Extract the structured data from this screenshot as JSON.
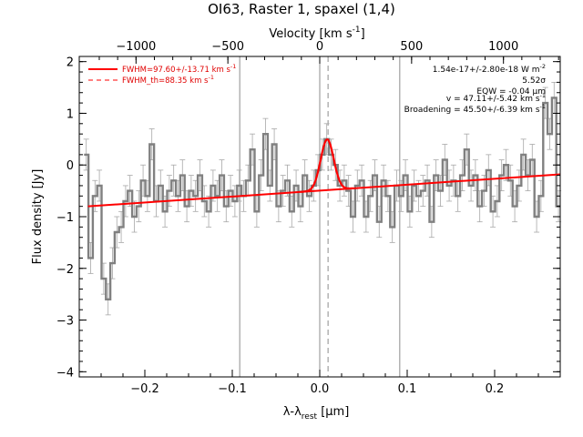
{
  "chart_data": {
    "type": "line",
    "title": "OI63, Raster 1, spaxel (1,4)",
    "xlabel": "λ-λ",
    "xlabel_sub": "rest",
    "xlabel_unit": " [μm]",
    "ylabel": "Flux density [Jy]",
    "top_xlabel": "Velocity [km s",
    "top_xlabel_sup": "-1",
    "top_xlabel_end": "]",
    "xlim": [
      -0.275,
      0.275
    ],
    "ylim": [
      -4.1,
      2.1
    ],
    "x_ticks": [
      -0.2,
      -0.1,
      0.0,
      0.1,
      0.2
    ],
    "x_tick_labels": [
      "−0.2",
      "−0.1",
      "0.0",
      "0.1",
      "0.2"
    ],
    "y_ticks": [
      -4,
      -3,
      -2,
      -1,
      0,
      1,
      2
    ],
    "y_tick_labels": [
      "−4",
      "−3",
      "−2",
      "−1",
      "0",
      "1",
      "2"
    ],
    "top_ticks_velocity": [
      -1000,
      -500,
      0,
      500,
      1000
    ],
    "top_tick_labels": [
      "−1000",
      "−500",
      "0",
      "500",
      "1000"
    ],
    "velocity_per_micron": 4760,
    "vertical_lines": [
      -0.0915,
      0.0,
      0.0915
    ],
    "line_center_dashed": 0.0095,
    "annotations": [
      "1.54e-17+/-2.80e-18 W m",
      "5.52σ",
      "EQW = -0.04 μm",
      "v = 47.11+/-5.42 km s",
      "Broadening = 45.50+/-6.39 km s"
    ],
    "annotation_sups": [
      "-2",
      "",
      "",
      "-1",
      "-1"
    ],
    "legend": [
      {
        "label": "FWHM=97.60+/-13.71 km s",
        "sup": "-1",
        "style": "solid"
      },
      {
        "label": "FWHM_th=88.35 km s",
        "sup": "-1",
        "style": "dashed"
      }
    ],
    "colors": {
      "data": "#808080",
      "fit": "#ff0000",
      "errorbar": "#a0a0a0",
      "axis": "#000000",
      "legend": "#e00000"
    },
    "continuum": {
      "x": [
        -0.265,
        0.275
      ],
      "y": [
        -0.8,
        -0.18
      ]
    },
    "gaussian": {
      "center": 0.0085,
      "amplitude": 0.98,
      "sigma": 0.0075
    },
    "spectrum": {
      "x": [
        -0.267,
        -0.262,
        -0.257,
        -0.252,
        -0.247,
        -0.242,
        -0.237,
        -0.232,
        -0.227,
        -0.222,
        -0.217,
        -0.212,
        -0.207,
        -0.202,
        -0.197,
        -0.192,
        -0.187,
        -0.182,
        -0.177,
        -0.172,
        -0.167,
        -0.162,
        -0.157,
        -0.152,
        -0.147,
        -0.142,
        -0.137,
        -0.132,
        -0.127,
        -0.122,
        -0.117,
        -0.112,
        -0.107,
        -0.102,
        -0.097,
        -0.092,
        -0.087,
        -0.082,
        -0.077,
        -0.072,
        -0.067,
        -0.062,
        -0.057,
        -0.052,
        -0.047,
        -0.042,
        -0.037,
        -0.032,
        -0.027,
        -0.022,
        -0.017,
        -0.012,
        -0.007,
        -0.002,
        0.003,
        0.008,
        0.013,
        0.018,
        0.023,
        0.028,
        0.033,
        0.038,
        0.043,
        0.048,
        0.053,
        0.058,
        0.063,
        0.068,
        0.073,
        0.078,
        0.083,
        0.088,
        0.093,
        0.098,
        0.103,
        0.108,
        0.113,
        0.118,
        0.123,
        0.128,
        0.133,
        0.138,
        0.143,
        0.148,
        0.153,
        0.158,
        0.163,
        0.168,
        0.173,
        0.178,
        0.183,
        0.188,
        0.193,
        0.198,
        0.203,
        0.208,
        0.213,
        0.218,
        0.223,
        0.228,
        0.233,
        0.238,
        0.243,
        0.248,
        0.253,
        0.258,
        0.263,
        0.268,
        0.273
      ],
      "y": [
        0.2,
        -1.8,
        -0.6,
        -0.4,
        -2.2,
        -2.6,
        -1.9,
        -1.3,
        -1.2,
        -0.7,
        -0.5,
        -1.0,
        -0.8,
        -0.3,
        -0.6,
        0.4,
        -0.7,
        -0.4,
        -0.9,
        -0.5,
        -0.3,
        -0.6,
        -0.2,
        -0.8,
        -0.5,
        -0.6,
        -0.2,
        -0.7,
        -0.9,
        -0.4,
        -0.6,
        -0.2,
        -0.8,
        -0.5,
        -0.7,
        -0.4,
        -0.6,
        -0.3,
        0.3,
        -0.9,
        -0.2,
        0.6,
        -0.4,
        0.4,
        -0.8,
        -0.5,
        -0.3,
        -0.9,
        -0.4,
        -0.8,
        -0.2,
        -0.6,
        -0.4,
        -0.1,
        0.2,
        0.5,
        0.2,
        0.0,
        -0.4,
        -0.3,
        -0.5,
        -1.0,
        -0.4,
        -0.3,
        -1.0,
        -0.6,
        -0.2,
        -1.1,
        -0.3,
        -0.6,
        -1.2,
        -0.4,
        -0.6,
        -0.2,
        -0.9,
        -0.4,
        -0.6,
        -0.5,
        -0.3,
        -1.1,
        -0.2,
        -0.5,
        0.1,
        -0.4,
        -0.3,
        -0.6,
        -0.2,
        0.3,
        -0.4,
        -0.2,
        -0.8,
        -0.5,
        -0.1,
        -0.9,
        -0.7,
        -0.2,
        0.0,
        -0.3,
        -0.8,
        -0.4,
        0.2,
        -0.2,
        0.1,
        -1.0,
        -0.6,
        1.2,
        0.6,
        1.3,
        -0.8
      ]
    }
  }
}
